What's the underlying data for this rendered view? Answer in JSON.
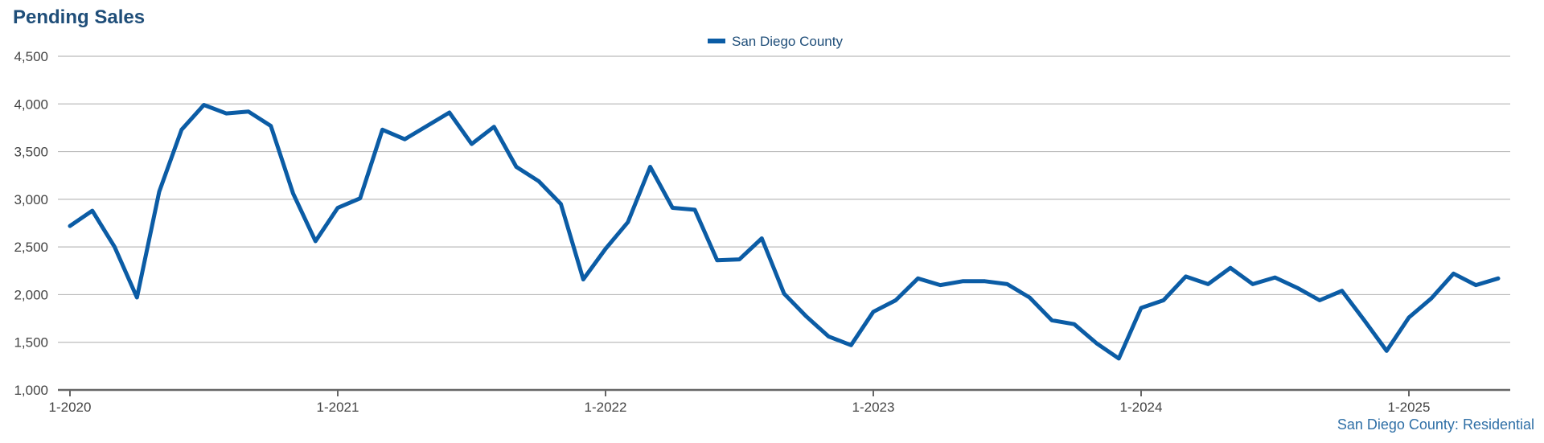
{
  "title": "Pending Sales",
  "footnote": "San Diego County: Residential",
  "colors": {
    "series": "#0b5ca5",
    "title": "#1f4e79",
    "grid": "#bbbbbb",
    "axis": "#666666"
  },
  "chart_data": {
    "type": "line",
    "title": "Pending Sales",
    "xlabel": "",
    "ylabel": "",
    "ylim": [
      1000,
      4500
    ],
    "yticks": [
      1000,
      1500,
      2000,
      2500,
      3000,
      3500,
      4000,
      4500
    ],
    "ytick_labels": [
      "1,000",
      "1,500",
      "2,000",
      "2,500",
      "3,000",
      "3,500",
      "4,000",
      "4,500"
    ],
    "xticks": [
      "1-2020",
      "1-2021",
      "1-2022",
      "1-2023",
      "1-2024",
      "1-2025"
    ],
    "grid": true,
    "legend": {
      "position": "top-center"
    },
    "series": [
      {
        "name": "San Diego County",
        "color": "#0b5ca5",
        "x": [
          "1-2020",
          "2-2020",
          "3-2020",
          "4-2020",
          "5-2020",
          "6-2020",
          "7-2020",
          "8-2020",
          "9-2020",
          "10-2020",
          "11-2020",
          "12-2020",
          "1-2021",
          "2-2021",
          "3-2021",
          "4-2021",
          "5-2021",
          "6-2021",
          "7-2021",
          "8-2021",
          "9-2021",
          "10-2021",
          "11-2021",
          "12-2021",
          "1-2022",
          "2-2022",
          "3-2022",
          "4-2022",
          "5-2022",
          "6-2022",
          "7-2022",
          "8-2022",
          "9-2022",
          "10-2022",
          "11-2022",
          "12-2022",
          "1-2023",
          "2-2023",
          "3-2023",
          "4-2023",
          "5-2023",
          "6-2023",
          "7-2023",
          "8-2023",
          "9-2023",
          "10-2023",
          "11-2023",
          "12-2023",
          "1-2024",
          "2-2024",
          "3-2024",
          "4-2024",
          "5-2024",
          "6-2024",
          "7-2024",
          "8-2024",
          "9-2024",
          "10-2024",
          "11-2024",
          "12-2024",
          "1-2025",
          "2-2025",
          "3-2025",
          "4-2025",
          "5-2025"
        ],
        "values": [
          2720,
          2880,
          2500,
          1970,
          3080,
          3730,
          3990,
          3900,
          3920,
          3770,
          3060,
          2560,
          2910,
          3010,
          3730,
          3630,
          3770,
          3910,
          3580,
          3760,
          3340,
          3190,
          2950,
          2160,
          2480,
          2760,
          3340,
          2910,
          2890,
          2360,
          2370,
          2590,
          2010,
          1770,
          1560,
          1470,
          1820,
          1940,
          2170,
          2100,
          2140,
          2140,
          2110,
          1970,
          1730,
          1690,
          1490,
          1330,
          1860,
          1940,
          2190,
          2110,
          2280,
          2110,
          2180,
          2070,
          1940,
          2040,
          1730,
          1410,
          1760,
          1960,
          2220,
          2100,
          2170
        ]
      }
    ]
  }
}
